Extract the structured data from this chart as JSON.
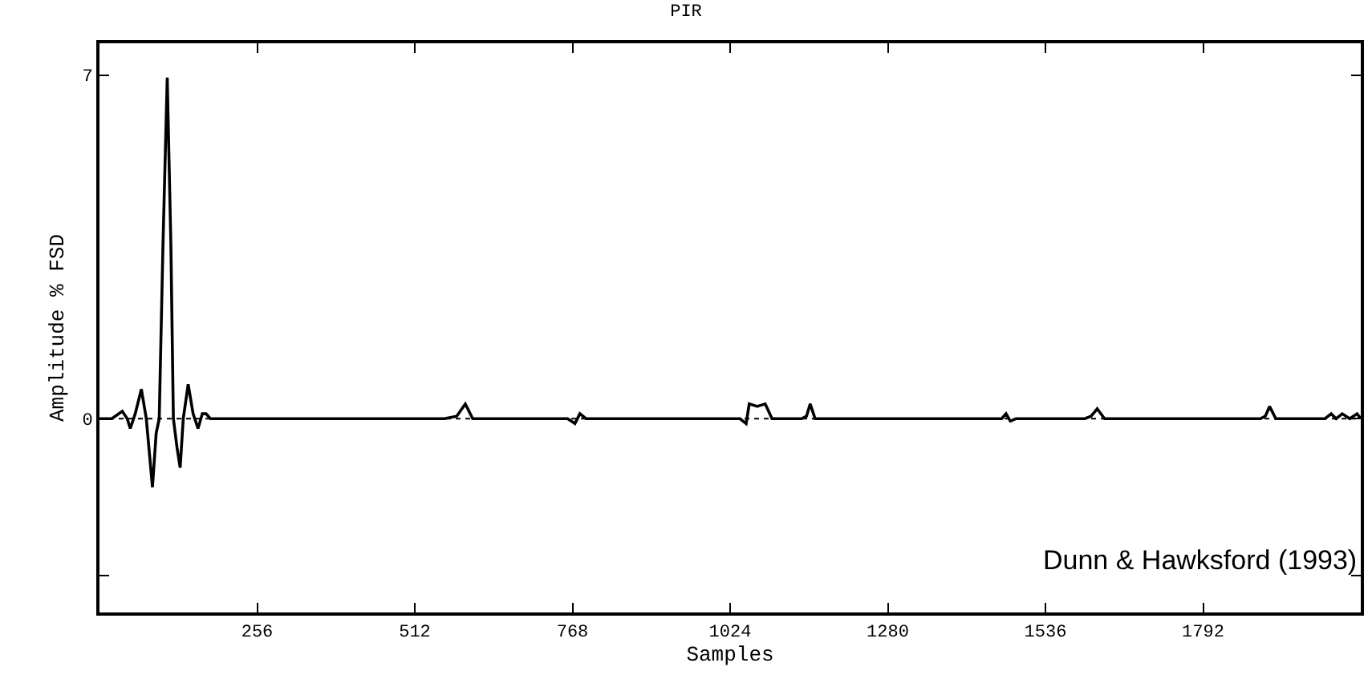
{
  "chart_data": {
    "type": "line",
    "title": "PIR",
    "xlabel": "Samples",
    "ylabel": "Amplitude % FSD",
    "annotations": [
      "Dunn & Hawksford (1993)"
    ],
    "xlim": [
      0,
      2048
    ],
    "xticks": [
      256,
      512,
      768,
      1024,
      1280,
      1536,
      1792
    ],
    "ylim": [
      -3.95,
      7.65
    ],
    "yticks": [
      7,
      0,
      {
        "value": -3.2,
        "label": null
      }
    ],
    "grid": false,
    "marker": "none",
    "line_style": "solid",
    "ref_lines": [
      {
        "axis": "y",
        "value": 0,
        "line_style": "dotted",
        "color": "#000000"
      }
    ],
    "series": [
      {
        "color": "#000000",
        "x": [
          0,
          20,
          37,
          45,
          50,
          58,
          68,
          76,
          86,
          92,
          97,
          103,
          110,
          116,
          120,
          126,
          131,
          136,
          144,
          152,
          160,
          167,
          173,
          180,
          190,
          250,
          400,
          560,
          580,
          594,
          606,
          620,
          760,
          772,
          780,
          790,
          1040,
          1050,
          1055,
          1068,
          1081,
          1092,
          1140,
          1148,
          1154,
          1162,
          1175,
          1465,
          1472,
          1479,
          1488,
          1600,
          1610,
          1620,
          1632,
          1650,
          1885,
          1893,
          1900,
          1910,
          1990,
          2000,
          2008,
          2018,
          2030,
          2042,
          2048
        ],
        "values": [
          0,
          0,
          0.15,
          0,
          -0.2,
          0.1,
          0.6,
          0,
          -1.4,
          -0.3,
          0,
          3.5,
          6.95,
          3.5,
          0,
          -0.6,
          -1.0,
          0,
          0.7,
          0.1,
          -0.2,
          0.1,
          0.1,
          0,
          0,
          0,
          0,
          0,
          0.05,
          0.3,
          0,
          0,
          0,
          -0.1,
          0.1,
          0,
          0,
          -0.1,
          0.3,
          0.25,
          0.3,
          0,
          0,
          0.05,
          0.3,
          0,
          0,
          0,
          0.1,
          -0.05,
          0,
          0,
          0.05,
          0.2,
          0,
          0,
          0,
          0.05,
          0.25,
          0,
          0,
          0.1,
          0,
          0.1,
          0,
          0.1,
          0
        ]
      }
    ]
  }
}
